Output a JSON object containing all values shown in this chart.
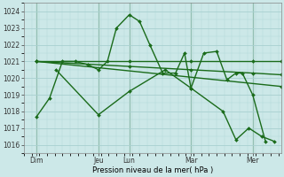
{
  "background_color": "#cce8e8",
  "grid_color": "#a8d0d0",
  "line_color": "#1a6b1a",
  "marker_color": "#1a6b1a",
  "ylabel_values": [
    1016,
    1017,
    1018,
    1019,
    1020,
    1021,
    1022,
    1023,
    1024
  ],
  "ylim": [
    1015.5,
    1024.5
  ],
  "xlabel": "Pression niveau de la mer( hPa )",
  "x_day_labels": [
    "Dim",
    "Jeu",
    "Lun",
    "Mar",
    "Mer"
  ],
  "x_day_positions": [
    10,
    58,
    82,
    130,
    178
  ],
  "xlim": [
    0,
    200
  ],
  "series": [
    {
      "x": [
        10,
        20,
        30,
        40,
        50,
        58,
        65,
        72,
        82,
        90,
        98,
        108,
        118,
        125,
        130,
        140,
        150,
        158,
        165,
        170,
        178,
        188
      ],
      "y": [
        1017.7,
        1018.8,
        1021.0,
        1021.0,
        1020.8,
        1020.5,
        1021.0,
        1023.0,
        1023.8,
        1023.4,
        1022.0,
        1020.3,
        1020.3,
        1021.5,
        1019.4,
        1021.5,
        1021.6,
        1019.9,
        1020.3,
        1020.3,
        1019.0,
        1016.2
      ]
    },
    {
      "x": [
        10,
        82,
        130,
        178,
        200
      ],
      "y": [
        1021.0,
        1021.0,
        1021.0,
        1021.0,
        1021.0
      ]
    },
    {
      "x": [
        10,
        200
      ],
      "y": [
        1021.0,
        1019.5
      ]
    },
    {
      "x": [
        10,
        82,
        130,
        178,
        200
      ],
      "y": [
        1021.0,
        1020.7,
        1020.5,
        1020.3,
        1020.2
      ]
    },
    {
      "x": [
        25,
        58,
        82,
        110,
        130,
        155,
        165,
        175,
        185,
        195
      ],
      "y": [
        1020.5,
        1017.8,
        1019.2,
        1020.5,
        1019.4,
        1018.0,
        1016.3,
        1017.0,
        1016.5,
        1016.2
      ]
    }
  ]
}
